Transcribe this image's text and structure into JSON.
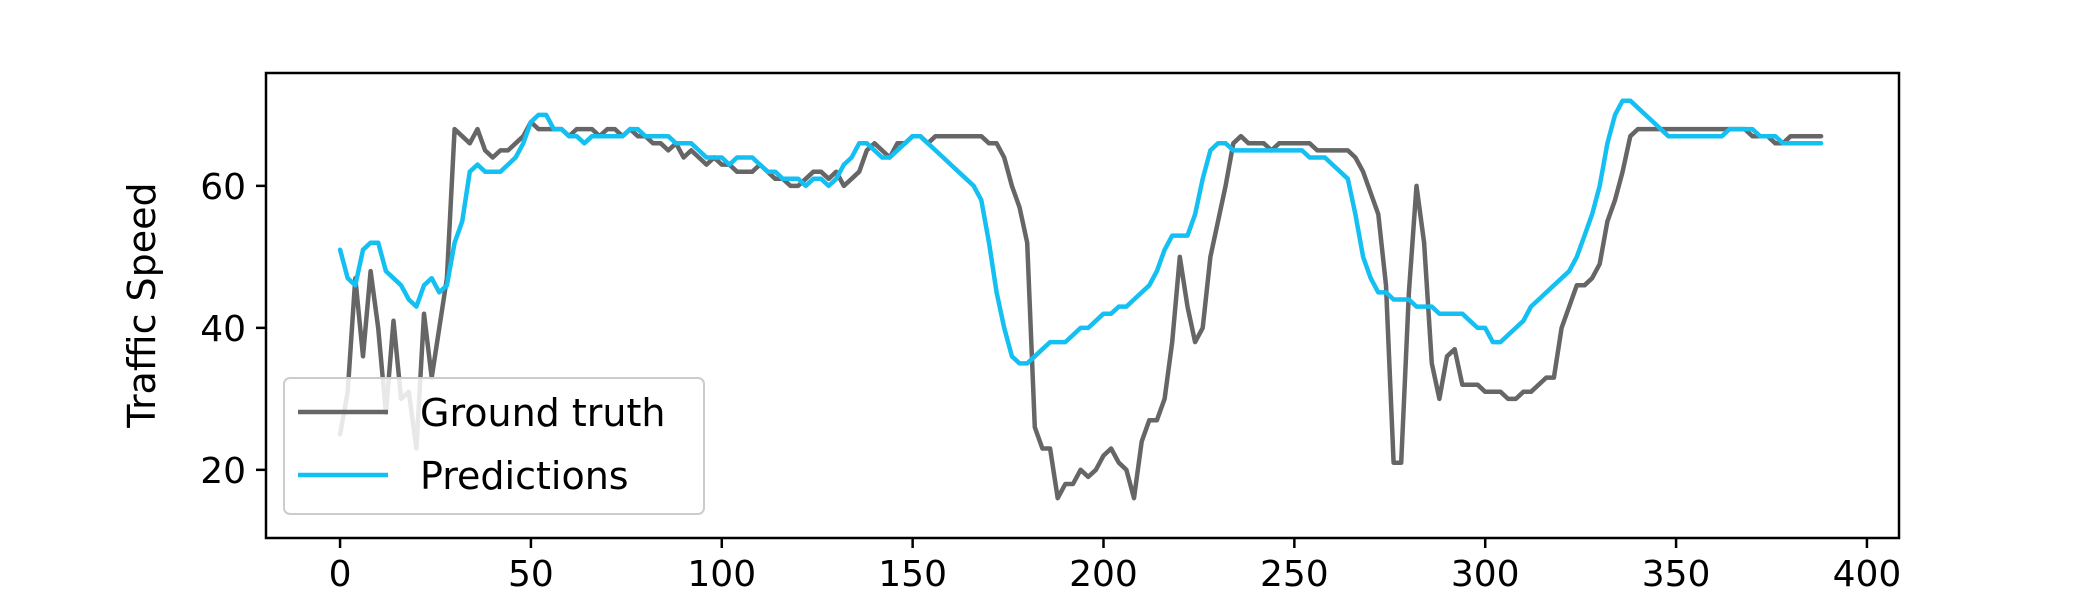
{
  "chart_data": {
    "type": "line",
    "title": "",
    "xlabel": "",
    "ylabel": "Traffic Speed",
    "xlim": [
      -19.4,
      408.4
    ],
    "ylim": [
      10.4,
      75.9
    ],
    "xticks": [
      0,
      50,
      100,
      150,
      200,
      250,
      300,
      350,
      400
    ],
    "yticks": [
      20,
      40,
      60
    ],
    "grid": false,
    "legend_position": "lower-left",
    "x_start": 0,
    "x_step": 2,
    "series": [
      {
        "name": "Ground truth",
        "color": "#666666",
        "values": [
          25,
          31,
          47,
          36,
          48,
          40,
          28,
          41,
          30,
          31,
          23,
          42,
          33,
          40,
          47,
          68,
          67,
          66,
          68,
          65,
          64,
          65,
          65,
          66,
          67,
          69,
          68,
          68,
          68,
          68,
          67,
          68,
          68,
          68,
          67,
          68,
          68,
          67,
          68,
          67,
          67,
          66,
          66,
          65,
          66,
          64,
          65,
          64,
          63,
          64,
          63,
          63,
          62,
          62,
          62,
          63,
          62,
          61,
          61,
          60,
          60,
          61,
          62,
          62,
          61,
          62,
          60,
          61,
          62,
          65,
          66,
          65,
          64,
          66,
          66,
          67,
          67,
          66,
          67,
          67,
          67,
          67,
          67,
          67,
          67,
          66,
          66,
          64,
          60,
          57,
          52,
          26,
          23,
          23,
          16,
          18,
          18,
          20,
          19,
          20,
          22,
          23,
          21,
          20,
          16,
          24,
          27,
          27,
          30,
          38,
          50,
          43,
          38,
          40,
          50,
          55,
          60,
          66,
          67,
          66,
          66,
          66,
          65,
          66,
          66,
          66,
          66,
          66,
          65,
          65,
          65,
          65,
          65,
          64,
          62,
          59,
          56,
          46,
          21,
          21,
          45,
          60,
          52,
          35,
          30,
          36,
          37,
          32,
          32,
          32,
          31,
          31,
          31,
          30,
          30,
          31,
          31,
          32,
          33,
          33,
          40,
          43,
          46,
          46,
          47,
          49,
          55,
          58,
          62,
          67,
          68,
          68,
          68,
          68,
          68,
          68,
          68,
          68,
          68,
          68,
          68,
          68,
          68,
          68,
          68,
          67,
          67,
          67,
          66,
          66,
          67,
          67,
          67,
          67,
          67
        ]
      },
      {
        "name": "Predictions",
        "color": "#14bff2",
        "values": [
          51,
          47,
          46,
          51,
          52,
          52,
          48,
          47,
          46,
          44,
          43,
          46,
          47,
          45,
          46,
          52,
          55,
          62,
          63,
          62,
          62,
          62,
          63,
          64,
          66,
          69,
          70,
          70,
          68,
          68,
          67,
          67,
          66,
          67,
          67,
          67,
          67,
          67,
          68,
          68,
          67,
          67,
          67,
          67,
          66,
          66,
          66,
          65,
          64,
          64,
          64,
          63,
          64,
          64,
          64,
          63,
          62,
          62,
          61,
          61,
          61,
          60,
          61,
          61,
          60,
          61,
          63,
          64,
          66,
          66,
          65,
          64,
          64,
          65,
          66,
          67,
          67,
          66,
          65,
          64,
          63,
          62,
          61,
          60,
          58,
          52,
          45,
          40,
          36,
          35,
          35,
          36,
          37,
          38,
          38,
          38,
          39,
          40,
          40,
          41,
          42,
          42,
          43,
          43,
          44,
          45,
          46,
          48,
          51,
          53,
          53,
          53,
          56,
          61,
          65,
          66,
          66,
          65,
          65,
          65,
          65,
          65,
          65,
          65,
          65,
          65,
          65,
          64,
          64,
          64,
          63,
          62,
          61,
          56,
          50,
          47,
          45,
          45,
          44,
          44,
          44,
          43,
          43,
          43,
          42,
          42,
          42,
          42,
          41,
          40,
          40,
          38,
          38,
          39,
          40,
          41,
          43,
          44,
          45,
          46,
          47,
          48,
          50,
          53,
          56,
          60,
          66,
          70,
          72,
          72,
          71,
          70,
          69,
          68,
          67,
          67,
          67,
          67,
          67,
          67,
          67,
          67,
          68,
          68,
          68,
          68,
          67,
          67,
          67,
          66,
          66,
          66,
          66,
          66,
          66
        ]
      }
    ]
  }
}
